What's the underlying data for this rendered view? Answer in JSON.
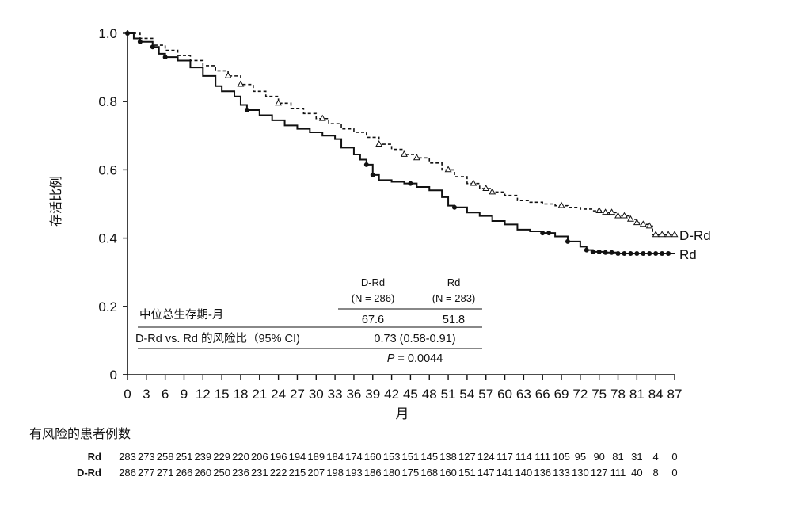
{
  "chart_data": {
    "type": "line",
    "subtype": "kaplan-meier",
    "xlabel": "月",
    "ylabel": "存活比例",
    "xlim": [
      0,
      87
    ],
    "ylim": [
      0,
      1.0
    ],
    "x_ticks": [
      0,
      3,
      6,
      9,
      12,
      15,
      18,
      21,
      24,
      27,
      30,
      33,
      36,
      39,
      42,
      45,
      48,
      51,
      54,
      57,
      60,
      63,
      66,
      69,
      72,
      75,
      78,
      81,
      84,
      87
    ],
    "y_ticks": [
      {
        "value": 0,
        "label": "0"
      },
      {
        "value": 0.2,
        "label": "0.2"
      },
      {
        "value": 0.4,
        "label": "0.4"
      },
      {
        "value": 0.6,
        "label": "0.6"
      },
      {
        "value": 0.8,
        "label": "0.8"
      },
      {
        "value": 1.0,
        "label": "1.0"
      }
    ],
    "series": [
      {
        "name": "D-Rd",
        "style": "dashed",
        "censor_marker": "triangle",
        "points": [
          [
            0,
            1.0
          ],
          [
            2,
            0.985
          ],
          [
            4,
            0.965
          ],
          [
            6,
            0.95
          ],
          [
            8,
            0.935
          ],
          [
            10,
            0.92
          ],
          [
            12,
            0.905
          ],
          [
            14,
            0.89
          ],
          [
            16,
            0.875
          ],
          [
            18,
            0.85
          ],
          [
            20,
            0.83
          ],
          [
            22,
            0.815
          ],
          [
            24,
            0.795
          ],
          [
            26,
            0.78
          ],
          [
            28,
            0.765
          ],
          [
            30,
            0.75
          ],
          [
            32,
            0.735
          ],
          [
            34,
            0.72
          ],
          [
            36,
            0.71
          ],
          [
            38,
            0.695
          ],
          [
            40,
            0.675
          ],
          [
            42,
            0.66
          ],
          [
            44,
            0.645
          ],
          [
            46,
            0.635
          ],
          [
            48,
            0.62
          ],
          [
            50,
            0.6
          ],
          [
            52,
            0.58
          ],
          [
            54,
            0.56
          ],
          [
            56,
            0.545
          ],
          [
            58,
            0.535
          ],
          [
            60,
            0.525
          ],
          [
            62,
            0.51
          ],
          [
            64,
            0.505
          ],
          [
            66,
            0.5
          ],
          [
            68,
            0.495
          ],
          [
            70,
            0.49
          ],
          [
            72,
            0.485
          ],
          [
            74,
            0.48
          ],
          [
            76,
            0.475
          ],
          [
            78,
            0.465
          ],
          [
            80,
            0.455
          ],
          [
            81,
            0.445
          ],
          [
            82,
            0.44
          ],
          [
            83,
            0.435
          ],
          [
            83.5,
            0.41
          ],
          [
            87,
            0.41
          ]
        ],
        "censored_x": [
          16,
          18,
          24,
          31,
          40,
          44,
          46,
          51,
          55,
          57,
          58,
          69,
          75,
          76,
          77,
          78,
          79,
          80,
          81,
          82,
          83,
          84,
          85,
          86,
          87
        ],
        "end_label": "D-Rd"
      },
      {
        "name": "Rd",
        "style": "solid",
        "censor_marker": "circle",
        "points": [
          [
            0,
            1.0
          ],
          [
            1,
            0.985
          ],
          [
            2,
            0.975
          ],
          [
            4,
            0.96
          ],
          [
            5,
            0.94
          ],
          [
            6,
            0.93
          ],
          [
            8,
            0.92
          ],
          [
            10,
            0.9
          ],
          [
            12,
            0.875
          ],
          [
            14,
            0.845
          ],
          [
            15,
            0.83
          ],
          [
            17,
            0.815
          ],
          [
            18,
            0.79
          ],
          [
            19,
            0.775
          ],
          [
            21,
            0.76
          ],
          [
            23,
            0.745
          ],
          [
            25,
            0.73
          ],
          [
            27,
            0.72
          ],
          [
            29,
            0.71
          ],
          [
            31,
            0.7
          ],
          [
            33,
            0.69
          ],
          [
            34,
            0.665
          ],
          [
            36,
            0.645
          ],
          [
            37,
            0.63
          ],
          [
            38,
            0.615
          ],
          [
            39,
            0.585
          ],
          [
            40,
            0.57
          ],
          [
            42,
            0.565
          ],
          [
            44,
            0.56
          ],
          [
            46,
            0.55
          ],
          [
            48,
            0.54
          ],
          [
            50,
            0.52
          ],
          [
            51,
            0.495
          ],
          [
            52,
            0.49
          ],
          [
            54,
            0.475
          ],
          [
            56,
            0.465
          ],
          [
            58,
            0.45
          ],
          [
            60,
            0.44
          ],
          [
            62,
            0.425
          ],
          [
            64,
            0.42
          ],
          [
            66,
            0.415
          ],
          [
            68,
            0.405
          ],
          [
            70,
            0.39
          ],
          [
            72,
            0.375
          ],
          [
            73,
            0.365
          ],
          [
            74,
            0.36
          ],
          [
            76,
            0.358
          ],
          [
            78,
            0.355
          ],
          [
            87,
            0.355
          ]
        ],
        "censored_x": [
          0,
          2,
          4,
          6,
          19,
          38,
          39,
          45,
          52,
          66,
          67,
          70,
          73,
          74,
          75,
          76,
          77,
          78,
          79,
          80,
          81,
          82,
          83,
          84,
          85,
          86
        ],
        "end_label": "Rd"
      }
    ],
    "inset_table": {
      "col_headers": [
        {
          "name": "D-Rd",
          "n": "(N = 286)"
        },
        {
          "name": "Rd",
          "n": "(N = 283)"
        }
      ],
      "rows": [
        {
          "label": "中位总生存期-月",
          "values": [
            "67.6",
            "51.8"
          ]
        },
        {
          "label": "D-Rd vs. Rd 的风险比（95% CI)",
          "merged": "0.73 (0.58-0.91)"
        }
      ],
      "p_label": "P",
      "p_value": "= 0.0044"
    },
    "at_risk": {
      "title": "有风险的患者例数",
      "rows": [
        {
          "label": "Rd",
          "values": [
            "283",
            "273",
            "258",
            "251",
            "239",
            "229",
            "220",
            "206",
            "196",
            "194",
            "189",
            "184",
            "174",
            "160",
            "153",
            "151",
            "145",
            "138",
            "127",
            "124",
            "117",
            "114",
            "111",
            "105",
            "95",
            "90",
            "81",
            "31",
            "4",
            "0"
          ]
        },
        {
          "label": "D-Rd",
          "values": [
            "286",
            "277",
            "271",
            "266",
            "260",
            "250",
            "236",
            "231",
            "222",
            "215",
            "207",
            "198",
            "193",
            "186",
            "180",
            "175",
            "168",
            "160",
            "151",
            "147",
            "141",
            "140",
            "136",
            "133",
            "130",
            "127",
            "111",
            "40",
            "8",
            "0"
          ]
        }
      ]
    }
  }
}
